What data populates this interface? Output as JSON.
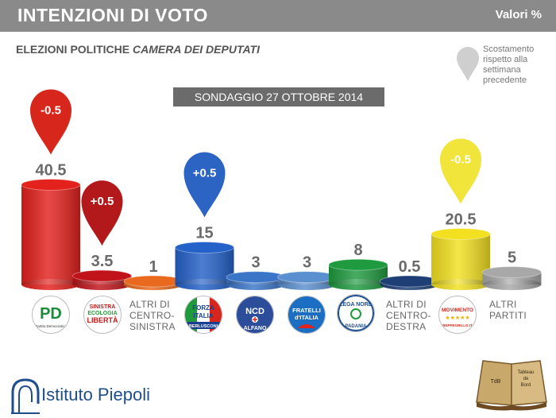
{
  "header": {
    "title": "INTENZIONI DI VOTO",
    "units": "Valori %"
  },
  "subtitle": {
    "prefix": "ELEZIONI POLITICHE",
    "emph": "CAMERA DEI DEPUTATI"
  },
  "legend": {
    "line1": "Scostamento",
    "line2": "rispetto alla",
    "line3": "settimana",
    "line4": "precedente"
  },
  "survey_label": "SONDAGGIO 27 OTTOBRE 2014",
  "chart_data": {
    "type": "bar",
    "categories": [
      "PD",
      "SEL",
      "ALTRI DI CENTRO-SINISTRA",
      "FORZA ITALIA",
      "NCD",
      "FRATELLI D'ITALIA",
      "LEGA NORD",
      "ALTRI DI CENTRO-DESTRA",
      "MOVIMENTO 5 STELLE",
      "ALTRI PARTITI"
    ],
    "values": [
      40.5,
      3.5,
      1,
      15,
      3,
      3,
      8,
      0.5,
      20.5,
      5
    ],
    "value_labels": [
      "40.5",
      "3.5",
      "1",
      "15",
      "3",
      "3",
      "8",
      "0.5",
      "20.5",
      "5"
    ],
    "changes": [
      {
        "index": 0,
        "label": "-0.5",
        "color": "#d7261b"
      },
      {
        "index": 1,
        "label": "+0.5",
        "color": "#b3191b"
      },
      {
        "index": 3,
        "label": "+0.5",
        "color": "#2b64c3"
      },
      {
        "index": 8,
        "label": "-0.5",
        "color": "#f1e43a"
      }
    ],
    "colors": [
      "#e3211d",
      "#c0141a",
      "#e96a1e",
      "#2461c8",
      "#3a75c8",
      "#5a8fd0",
      "#1f9a3f",
      "#1d3f75",
      "#f2e021",
      "#a8a8a8"
    ]
  },
  "text_labels": {
    "altri_cs": [
      "ALTRI DI",
      "CENTRO-",
      "SINISTRA"
    ],
    "altri_cd": [
      "ALTRI DI",
      "CENTRO-",
      "DESTRA"
    ],
    "altri_partiti": [
      "ALTRI",
      "PARTITI"
    ]
  },
  "logos": {
    "pd": {
      "main": "PD",
      "sub": "Partito Democratico"
    },
    "sel": {
      "l1": "SINISTRA",
      "l2": "ECOLOGIA",
      "l3": "LIBERTÀ"
    },
    "fi": {
      "l1": "FORZA",
      "l2": "ITALIA",
      "l3": "BERLUSCONI"
    },
    "ncd": {
      "l1": "NCD",
      "l2": "ALFANO"
    },
    "fdi": {
      "l1": "FRATELLI",
      "l2": "d'ITALIA"
    },
    "lega": {
      "l1": "LEGA NORD",
      "l2": "PADANIA"
    },
    "m5s": {
      "l1": "MOVIMENTO",
      "l2": "BEPPEGRILLO.IT"
    }
  },
  "footer": {
    "brand": "Istituto Piepoli",
    "book_left": "TdB",
    "book_right": "Tableau de Bord"
  }
}
